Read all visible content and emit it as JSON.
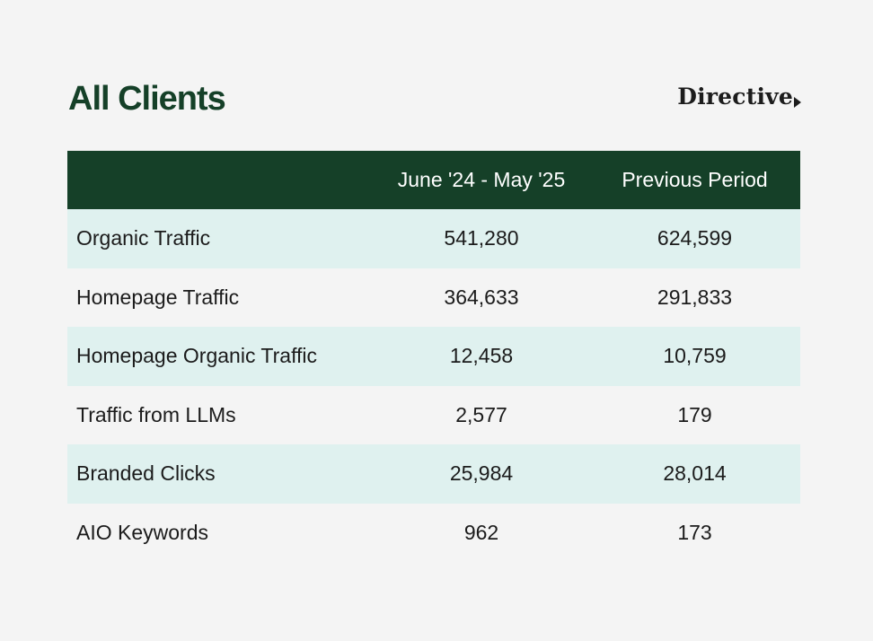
{
  "title": "All Clients",
  "brand": {
    "logo_text": "Directive"
  },
  "colors": {
    "title": "#154028",
    "header_bg": "#154028",
    "row_alt_bg": "#dff1ef",
    "page_bg": "#f4f4f4"
  },
  "table": {
    "columns": [
      "",
      "June '24 - May '25",
      "Previous Period"
    ],
    "rows": [
      {
        "metric": "Organic Traffic",
        "current": "541,280",
        "previous": "624,599"
      },
      {
        "metric": "Homepage Traffic",
        "current": "364,633",
        "previous": "291,833"
      },
      {
        "metric": "Homepage Organic Traffic",
        "current": "12,458",
        "previous": "10,759"
      },
      {
        "metric": "Traffic from LLMs",
        "current": "2,577",
        "previous": "179"
      },
      {
        "metric": "Branded Clicks",
        "current": "25,984",
        "previous": "28,014"
      },
      {
        "metric": "AIO Keywords",
        "current": "962",
        "previous": "173"
      }
    ]
  }
}
